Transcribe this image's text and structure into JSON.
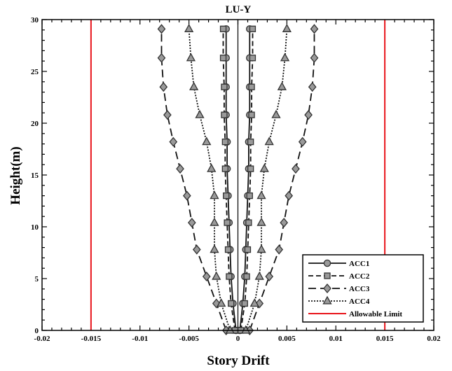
{
  "chart_data": {
    "type": "line",
    "title": "LU-Y",
    "xlabel": "Story Drift",
    "ylabel": "Height(m)",
    "xlim": [
      -0.02,
      0.02
    ],
    "ylim": [
      0,
      30
    ],
    "x_ticks": [
      "-0.02",
      "-0.015",
      "-0.01",
      "-0.005",
      "0",
      "0.005",
      "0.01",
      "0.015",
      "0.02"
    ],
    "y_ticks": [
      "0",
      "5",
      "10",
      "15",
      "20",
      "25",
      "30"
    ],
    "x_tick_values": [
      -0.02,
      -0.015,
      -0.01,
      -0.005,
      0,
      0.005,
      0.01,
      0.015,
      0.02
    ],
    "y_tick_values": [
      0,
      5,
      10,
      15,
      20,
      25,
      30
    ],
    "heights": [
      0,
      2.6,
      5.2,
      7.8,
      10.4,
      13.0,
      15.6,
      18.2,
      20.8,
      23.5,
      26.3,
      29.1
    ],
    "series": [
      {
        "name": "ACC1",
        "marker": "circle",
        "dash": "solid",
        "pos": [
          0.0002,
          0.0005,
          0.0007,
          0.0008,
          0.0009,
          0.001,
          0.0011,
          0.0011,
          0.0012,
          0.0012,
          0.0012,
          0.0012
        ],
        "neg": [
          -0.0002,
          -0.0005,
          -0.0007,
          -0.0008,
          -0.0009,
          -0.001,
          -0.0011,
          -0.0011,
          -0.0012,
          -0.0012,
          -0.0012,
          -0.0012
        ]
      },
      {
        "name": "ACC2",
        "marker": "square",
        "dash": "dashed",
        "pos": [
          0.0003,
          0.0007,
          0.0009,
          0.001,
          0.0011,
          0.0012,
          0.0013,
          0.0013,
          0.0014,
          0.0014,
          0.0015,
          0.0015
        ],
        "neg": [
          -0.0003,
          -0.0007,
          -0.0009,
          -0.001,
          -0.0011,
          -0.0012,
          -0.0013,
          -0.0013,
          -0.0014,
          -0.0014,
          -0.0015,
          -0.0015
        ]
      },
      {
        "name": "ACC3",
        "marker": "diamond",
        "dash": "longdash",
        "pos": [
          0.0012,
          0.0022,
          0.0032,
          0.0042,
          0.0047,
          0.0052,
          0.0059,
          0.0066,
          0.0072,
          0.0076,
          0.0078,
          0.0078
        ],
        "neg": [
          -0.0012,
          -0.0022,
          -0.0032,
          -0.0042,
          -0.0047,
          -0.0052,
          -0.0059,
          -0.0066,
          -0.0072,
          -0.0076,
          -0.0078,
          -0.0078
        ]
      },
      {
        "name": "ACC4",
        "marker": "triangle",
        "dash": "dotted",
        "pos": [
          0.0008,
          0.0017,
          0.0022,
          0.0024,
          0.0024,
          0.0024,
          0.0027,
          0.0032,
          0.0039,
          0.0045,
          0.0048,
          0.005
        ],
        "neg": [
          -0.0008,
          -0.0017,
          -0.0022,
          -0.0024,
          -0.0024,
          -0.0024,
          -0.0027,
          -0.0032,
          -0.0039,
          -0.0045,
          -0.0048,
          -0.005
        ]
      }
    ],
    "allowable_limit": {
      "name": "Allowable Limit",
      "values": [
        -0.015,
        0.015
      ],
      "color": "#e8141b"
    },
    "legend": {
      "placement": "bottom-right"
    },
    "grid": false
  }
}
